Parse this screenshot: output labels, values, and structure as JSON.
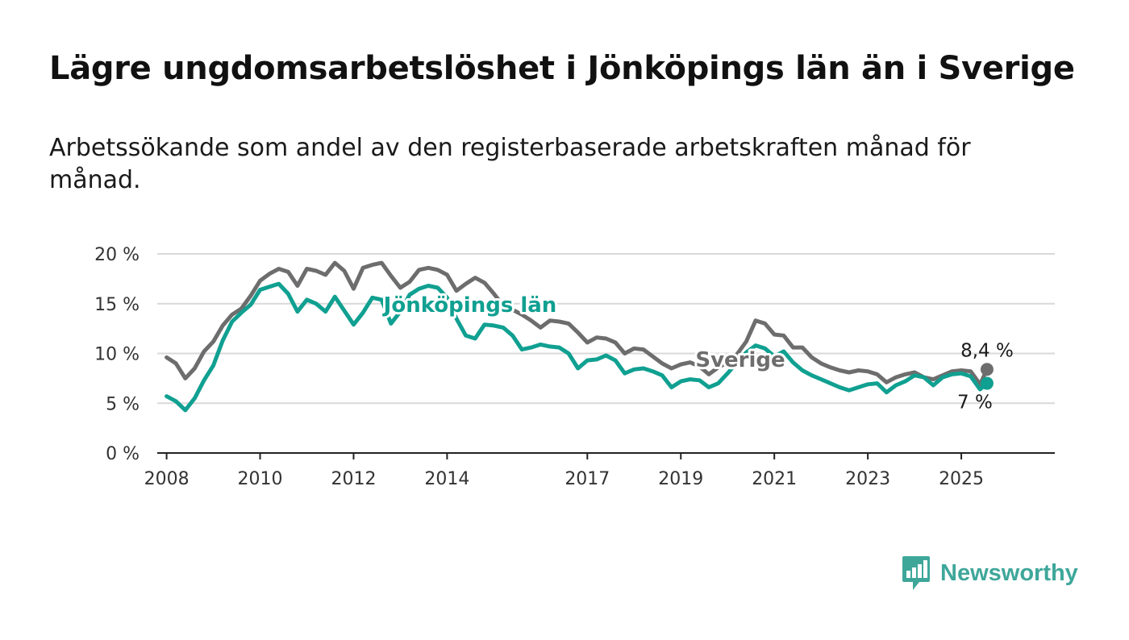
{
  "title": "Lägre ungdomsarbetslöshet i Jönköpings län än i Sverige",
  "subtitle": "Arbetssökande som andel av den registerbaserade arbetskraften månad för månad.",
  "brand": {
    "name": "Newsworthy",
    "icon": "newsworthy-logo-icon"
  },
  "colors": {
    "sverige": "#6d6d6d",
    "jonkoping": "#10a091",
    "grid": "#d9d9d9",
    "axis": "#222222"
  },
  "chart_data": {
    "type": "line",
    "title": "Lägre ungdomsarbetslöshet i Jönköpings län än i Sverige",
    "subtitle": "Arbetssökande som andel av den registerbaserade arbetskraften månad för månad.",
    "xlabel": "",
    "ylabel": "",
    "xlim": [
      2007.8,
      2027.0
    ],
    "ylim": [
      0,
      20
    ],
    "y_ticks": [
      0,
      5,
      10,
      15,
      20
    ],
    "y_tick_labels": [
      "0 %",
      "5 %",
      "10 %",
      "15 %",
      "20 %"
    ],
    "x_ticks": [
      2008,
      2010,
      2012,
      2014,
      2017,
      2019,
      2021,
      2023,
      2025
    ],
    "x_tick_labels": [
      "2008",
      "2010",
      "2012",
      "2014",
      "2017",
      "2019",
      "2021",
      "2023",
      "2025"
    ],
    "grid": true,
    "series": [
      {
        "name": "Sverige",
        "color": "#6d6d6d",
        "label_text": "Sverige",
        "end_label": "8,4 %",
        "points": [
          [
            2008.0,
            9.6
          ],
          [
            2008.2,
            9.0
          ],
          [
            2008.4,
            7.5
          ],
          [
            2008.6,
            8.5
          ],
          [
            2008.8,
            10.2
          ],
          [
            2009.0,
            11.2
          ],
          [
            2009.2,
            12.8
          ],
          [
            2009.4,
            13.9
          ],
          [
            2009.6,
            14.5
          ],
          [
            2009.8,
            15.8
          ],
          [
            2010.0,
            17.3
          ],
          [
            2010.2,
            18.0
          ],
          [
            2010.4,
            18.5
          ],
          [
            2010.6,
            18.2
          ],
          [
            2010.8,
            16.8
          ],
          [
            2011.0,
            18.5
          ],
          [
            2011.2,
            18.3
          ],
          [
            2011.4,
            17.9
          ],
          [
            2011.6,
            19.1
          ],
          [
            2011.8,
            18.3
          ],
          [
            2012.0,
            16.5
          ],
          [
            2012.2,
            18.6
          ],
          [
            2012.4,
            18.9
          ],
          [
            2012.6,
            19.1
          ],
          [
            2012.8,
            17.8
          ],
          [
            2013.0,
            16.6
          ],
          [
            2013.2,
            17.2
          ],
          [
            2013.4,
            18.4
          ],
          [
            2013.6,
            18.6
          ],
          [
            2013.8,
            18.4
          ],
          [
            2014.0,
            17.9
          ],
          [
            2014.2,
            16.3
          ],
          [
            2014.4,
            17.0
          ],
          [
            2014.6,
            17.6
          ],
          [
            2014.8,
            17.1
          ],
          [
            2015.0,
            16.0
          ],
          [
            2015.2,
            14.8
          ],
          [
            2015.4,
            14.4
          ],
          [
            2015.6,
            13.9
          ],
          [
            2015.8,
            13.3
          ],
          [
            2016.0,
            12.6
          ],
          [
            2016.2,
            13.3
          ],
          [
            2016.4,
            13.2
          ],
          [
            2016.6,
            13.0
          ],
          [
            2016.8,
            12.1
          ],
          [
            2017.0,
            11.1
          ],
          [
            2017.2,
            11.6
          ],
          [
            2017.4,
            11.5
          ],
          [
            2017.6,
            11.1
          ],
          [
            2017.8,
            10.0
          ],
          [
            2018.0,
            10.5
          ],
          [
            2018.2,
            10.4
          ],
          [
            2018.4,
            9.7
          ],
          [
            2018.6,
            9.0
          ],
          [
            2018.8,
            8.5
          ],
          [
            2019.0,
            8.9
          ],
          [
            2019.2,
            9.1
          ],
          [
            2019.4,
            8.7
          ],
          [
            2019.6,
            7.9
          ],
          [
            2019.8,
            8.6
          ],
          [
            2020.0,
            9.1
          ],
          [
            2020.2,
            9.9
          ],
          [
            2020.4,
            11.2
          ],
          [
            2020.6,
            13.3
          ],
          [
            2020.8,
            13.0
          ],
          [
            2021.0,
            11.9
          ],
          [
            2021.2,
            11.8
          ],
          [
            2021.4,
            10.6
          ],
          [
            2021.6,
            10.6
          ],
          [
            2021.8,
            9.6
          ],
          [
            2022.0,
            9.0
          ],
          [
            2022.2,
            8.6
          ],
          [
            2022.4,
            8.3
          ],
          [
            2022.6,
            8.1
          ],
          [
            2022.8,
            8.3
          ],
          [
            2023.0,
            8.2
          ],
          [
            2023.2,
            7.9
          ],
          [
            2023.4,
            7.1
          ],
          [
            2023.6,
            7.6
          ],
          [
            2023.8,
            7.9
          ],
          [
            2024.0,
            8.1
          ],
          [
            2024.2,
            7.6
          ],
          [
            2024.4,
            7.4
          ],
          [
            2024.6,
            7.8
          ],
          [
            2024.8,
            8.2
          ],
          [
            2025.0,
            8.3
          ],
          [
            2025.2,
            8.2
          ],
          [
            2025.4,
            6.9
          ],
          [
            2025.55,
            8.4
          ]
        ]
      },
      {
        "name": "Jönköpings län",
        "color": "#10a091",
        "label_text": "Jönköpings län",
        "end_label": "7 %",
        "points": [
          [
            2008.0,
            5.7
          ],
          [
            2008.2,
            5.2
          ],
          [
            2008.4,
            4.3
          ],
          [
            2008.6,
            5.5
          ],
          [
            2008.8,
            7.3
          ],
          [
            2009.0,
            8.8
          ],
          [
            2009.2,
            11.3
          ],
          [
            2009.4,
            13.2
          ],
          [
            2009.6,
            14.1
          ],
          [
            2009.8,
            14.9
          ],
          [
            2010.0,
            16.4
          ],
          [
            2010.2,
            16.7
          ],
          [
            2010.4,
            17.0
          ],
          [
            2010.6,
            16.0
          ],
          [
            2010.8,
            14.2
          ],
          [
            2011.0,
            15.4
          ],
          [
            2011.2,
            15.0
          ],
          [
            2011.4,
            14.2
          ],
          [
            2011.6,
            15.7
          ],
          [
            2011.8,
            14.3
          ],
          [
            2012.0,
            12.9
          ],
          [
            2012.2,
            14.1
          ],
          [
            2012.4,
            15.6
          ],
          [
            2012.6,
            15.4
          ],
          [
            2012.8,
            13.0
          ],
          [
            2013.0,
            14.2
          ],
          [
            2013.2,
            15.9
          ],
          [
            2013.4,
            16.5
          ],
          [
            2013.6,
            16.8
          ],
          [
            2013.8,
            16.6
          ],
          [
            2014.0,
            15.6
          ],
          [
            2014.2,
            13.5
          ],
          [
            2014.4,
            11.8
          ],
          [
            2014.6,
            11.5
          ],
          [
            2014.8,
            12.9
          ],
          [
            2015.0,
            12.8
          ],
          [
            2015.2,
            12.6
          ],
          [
            2015.4,
            11.8
          ],
          [
            2015.6,
            10.4
          ],
          [
            2015.8,
            10.6
          ],
          [
            2016.0,
            10.9
          ],
          [
            2016.2,
            10.7
          ],
          [
            2016.4,
            10.6
          ],
          [
            2016.6,
            10.0
          ],
          [
            2016.8,
            8.5
          ],
          [
            2017.0,
            9.3
          ],
          [
            2017.2,
            9.4
          ],
          [
            2017.4,
            9.8
          ],
          [
            2017.6,
            9.3
          ],
          [
            2017.8,
            8.0
          ],
          [
            2018.0,
            8.4
          ],
          [
            2018.2,
            8.5
          ],
          [
            2018.4,
            8.2
          ],
          [
            2018.6,
            7.8
          ],
          [
            2018.8,
            6.6
          ],
          [
            2019.0,
            7.2
          ],
          [
            2019.2,
            7.4
          ],
          [
            2019.4,
            7.3
          ],
          [
            2019.6,
            6.6
          ],
          [
            2019.8,
            7.0
          ],
          [
            2020.0,
            8.0
          ],
          [
            2020.2,
            9.1
          ],
          [
            2020.4,
            10.1
          ],
          [
            2020.6,
            10.8
          ],
          [
            2020.8,
            10.5
          ],
          [
            2021.0,
            9.7
          ],
          [
            2021.2,
            10.2
          ],
          [
            2021.4,
            9.1
          ],
          [
            2021.6,
            8.3
          ],
          [
            2021.8,
            7.8
          ],
          [
            2022.0,
            7.4
          ],
          [
            2022.2,
            7.0
          ],
          [
            2022.4,
            6.6
          ],
          [
            2022.6,
            6.3
          ],
          [
            2022.8,
            6.6
          ],
          [
            2023.0,
            6.9
          ],
          [
            2023.2,
            7.0
          ],
          [
            2023.4,
            6.1
          ],
          [
            2023.6,
            6.8
          ],
          [
            2023.8,
            7.2
          ],
          [
            2024.0,
            7.8
          ],
          [
            2024.2,
            7.6
          ],
          [
            2024.4,
            6.8
          ],
          [
            2024.6,
            7.6
          ],
          [
            2024.8,
            7.9
          ],
          [
            2025.0,
            8.0
          ],
          [
            2025.2,
            7.7
          ],
          [
            2025.4,
            6.4
          ],
          [
            2025.55,
            7.0
          ]
        ]
      }
    ]
  }
}
